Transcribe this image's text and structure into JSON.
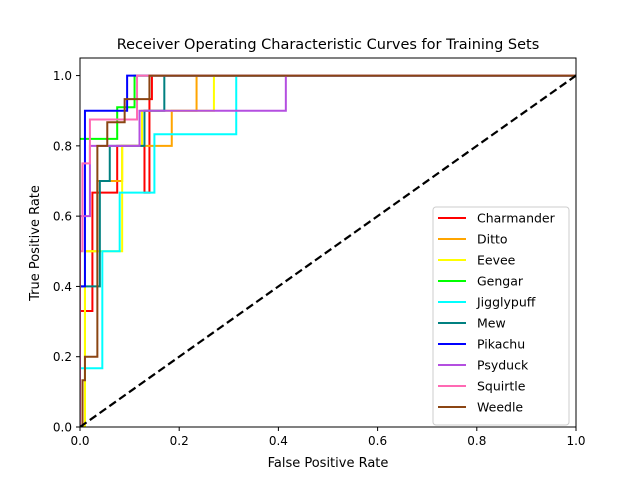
{
  "chart_data": {
    "type": "line",
    "title": "Receiver Operating Characteristic Curves for Training Sets",
    "xlabel": "False Positive Rate",
    "ylabel": "True Positive Rate",
    "xlim": [
      0.0,
      1.0
    ],
    "ylim": [
      0.0,
      1.05
    ],
    "xticks": [
      0.0,
      0.2,
      0.4,
      0.6,
      0.8,
      1.0
    ],
    "yticks": [
      0.0,
      0.2,
      0.4,
      0.6,
      0.8,
      1.0
    ],
    "xtick_labels": [
      "0.0",
      "0.2",
      "0.4",
      "0.6",
      "0.8",
      "1.0"
    ],
    "ytick_labels": [
      "0.0",
      "0.2",
      "0.4",
      "0.6",
      "0.8",
      "1.0"
    ],
    "grid": false,
    "legend_position": "lower-right",
    "diagonal": {
      "style": "dashed",
      "color": "#000000",
      "points": [
        [
          0,
          0
        ],
        [
          1,
          1
        ]
      ]
    },
    "series": [
      {
        "name": "Charmander",
        "color": "#ff0000",
        "points": [
          [
            0,
            0
          ],
          [
            0,
            0.33
          ],
          [
            0.025,
            0.33
          ],
          [
            0.025,
            0.667
          ],
          [
            0.075,
            0.667
          ],
          [
            0.075,
            0.8
          ],
          [
            0.13,
            0.8
          ],
          [
            0.13,
            0.667
          ],
          [
            0.14,
            0.667
          ],
          [
            0.14,
            0.933
          ],
          [
            0.145,
            0.933
          ],
          [
            0.145,
            1.0
          ],
          [
            1.0,
            1.0
          ]
        ]
      },
      {
        "name": "Ditto",
        "color": "#ffa500",
        "points": [
          [
            0,
            0
          ],
          [
            0.01,
            0
          ],
          [
            0.01,
            0.5
          ],
          [
            0.035,
            0.5
          ],
          [
            0.035,
            0.7
          ],
          [
            0.085,
            0.7
          ],
          [
            0.085,
            0.8
          ],
          [
            0.185,
            0.8
          ],
          [
            0.185,
            0.9
          ],
          [
            0.235,
            0.9
          ],
          [
            0.235,
            1.0
          ],
          [
            1.0,
            1.0
          ]
        ]
      },
      {
        "name": "Eevee",
        "color": "#ffff00",
        "points": [
          [
            0,
            0
          ],
          [
            0.01,
            0
          ],
          [
            0.01,
            0.5
          ],
          [
            0.085,
            0.5
          ],
          [
            0.085,
            0.8
          ],
          [
            0.125,
            0.8
          ],
          [
            0.125,
            0.9
          ],
          [
            0.27,
            0.9
          ],
          [
            0.27,
            1.0
          ],
          [
            1.0,
            1.0
          ]
        ]
      },
      {
        "name": "Gengar",
        "color": "#00ff00",
        "points": [
          [
            0,
            0.82
          ],
          [
            0.075,
            0.82
          ],
          [
            0.075,
            0.91
          ],
          [
            0.11,
            0.91
          ],
          [
            0.11,
            1.0
          ],
          [
            1.0,
            1.0
          ]
        ]
      },
      {
        "name": "Jigglypuff",
        "color": "#00ffff",
        "points": [
          [
            0,
            0
          ],
          [
            0,
            0.167
          ],
          [
            0.045,
            0.167
          ],
          [
            0.045,
            0.5
          ],
          [
            0.08,
            0.5
          ],
          [
            0.08,
            0.667
          ],
          [
            0.15,
            0.667
          ],
          [
            0.15,
            0.833
          ],
          [
            0.315,
            0.833
          ],
          [
            0.315,
            1.0
          ],
          [
            1.0,
            1.0
          ]
        ]
      },
      {
        "name": "Mew",
        "color": "#008080",
        "points": [
          [
            0,
            0
          ],
          [
            0,
            0.4
          ],
          [
            0.04,
            0.4
          ],
          [
            0.04,
            0.7
          ],
          [
            0.06,
            0.7
          ],
          [
            0.06,
            0.8
          ],
          [
            0.13,
            0.8
          ],
          [
            0.13,
            0.9
          ],
          [
            0.17,
            0.9
          ],
          [
            0.17,
            1.0
          ],
          [
            1.0,
            1.0
          ]
        ]
      },
      {
        "name": "Pikachu",
        "color": "#0000ff",
        "points": [
          [
            0,
            0
          ],
          [
            0,
            0.4
          ],
          [
            0.01,
            0.4
          ],
          [
            0.01,
            0.9
          ],
          [
            0.095,
            0.9
          ],
          [
            0.095,
            1.0
          ],
          [
            1.0,
            1.0
          ]
        ]
      },
      {
        "name": "Psyduck",
        "color": "#b44fe0",
        "points": [
          [
            0,
            0
          ],
          [
            0,
            0.6
          ],
          [
            0.02,
            0.6
          ],
          [
            0.02,
            0.8
          ],
          [
            0.12,
            0.8
          ],
          [
            0.12,
            0.9
          ],
          [
            0.415,
            0.9
          ],
          [
            0.415,
            1.0
          ],
          [
            1.0,
            1.0
          ]
        ]
      },
      {
        "name": "Squirtle",
        "color": "#ff69b4",
        "points": [
          [
            0,
            0
          ],
          [
            0,
            0.5
          ],
          [
            0.005,
            0.5
          ],
          [
            0.005,
            0.75
          ],
          [
            0.02,
            0.75
          ],
          [
            0.02,
            0.875
          ],
          [
            0.115,
            0.875
          ],
          [
            0.115,
            1.0
          ],
          [
            1.0,
            1.0
          ]
        ]
      },
      {
        "name": "Weedle",
        "color": "#8b4513",
        "points": [
          [
            0,
            0
          ],
          [
            0.005,
            0
          ],
          [
            0.005,
            0.133
          ],
          [
            0.01,
            0.133
          ],
          [
            0.01,
            0.2
          ],
          [
            0.035,
            0.2
          ],
          [
            0.035,
            0.8
          ],
          [
            0.055,
            0.8
          ],
          [
            0.055,
            0.867
          ],
          [
            0.09,
            0.867
          ],
          [
            0.09,
            0.933
          ],
          [
            0.14,
            0.933
          ],
          [
            0.14,
            1.0
          ],
          [
            1.0,
            1.0
          ]
        ]
      }
    ]
  }
}
